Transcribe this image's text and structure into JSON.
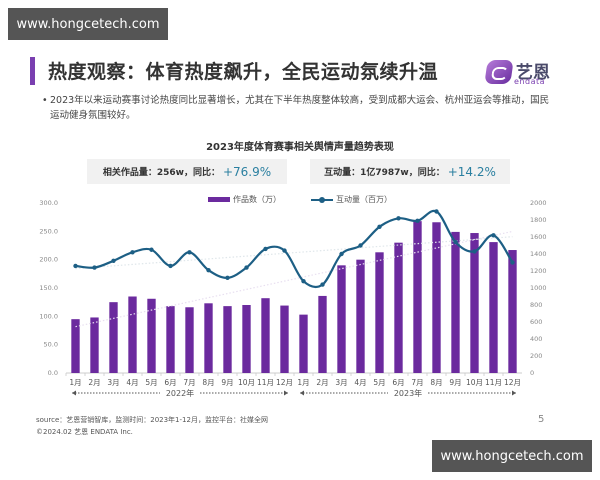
{
  "watermark": {
    "top": "www.hongcetech.com",
    "bottom": "www.hongcetech.com"
  },
  "slide": {
    "title": "热度观察：体育热度飙升，全民运动氛续升温",
    "logo": {
      "cn": "艺恩",
      "en": "endata"
    },
    "bullet": "2023年以来运动赛事讨论热度同比显著增长，尤其在下半年热度整体较高，受到成都大运会、杭州亚运会等推动，国民运动健身氛围较好。",
    "accent_color": "#7a3fb0",
    "stats": [
      {
        "label": "相关作品量：256w，同比：",
        "value": "+76.9%"
      },
      {
        "label": "互动量：1亿7987w，同比：",
        "value": "+14.2%"
      }
    ],
    "source_line": "source：艺恩营销智库，监测时间：2023年1-12月，监控平台：社媒全网",
    "copyright": "©2024.02  艺恩 ENDATA Inc.",
    "page_number": "5"
  },
  "chart_data": {
    "type": "bar",
    "title": "2023年度体育赛事相关舆情声量趋势表现",
    "categories": [
      "1月",
      "2月",
      "3月",
      "4月",
      "5月",
      "6月",
      "7月",
      "8月",
      "9月",
      "10月",
      "11月",
      "12月",
      "1月",
      "2月",
      "3月",
      "4月",
      "5月",
      "6月",
      "7月",
      "8月",
      "9月",
      "10月",
      "11月",
      "12月"
    ],
    "group_labels": [
      {
        "label": "2022年",
        "from": 0,
        "to": 11
      },
      {
        "label": "2023年",
        "from": 12,
        "to": 23
      }
    ],
    "series": [
      {
        "name": "作品数（万）",
        "type": "bar",
        "axis": "left",
        "color": "#6b2a9e",
        "values": [
          95,
          98,
          125,
          135,
          131,
          118,
          116,
          123,
          118,
          120,
          132,
          119,
          103,
          136,
          190,
          200,
          213,
          230,
          268,
          266,
          249,
          247,
          231,
          217
        ]
      },
      {
        "name": "互动量（百万）",
        "type": "line",
        "axis": "right",
        "color": "#1d5f85",
        "values": [
          1260,
          1240,
          1320,
          1420,
          1450,
          1260,
          1420,
          1210,
          1120,
          1240,
          1460,
          1440,
          1080,
          1040,
          1400,
          1500,
          1720,
          1820,
          1790,
          1900,
          1540,
          1430,
          1620,
          1300
        ]
      }
    ],
    "trendlines": "dotted linear trendlines for both series",
    "left_axis": {
      "ylim": [
        0,
        300
      ],
      "ticks": [
        "0.0",
        "50.0",
        "100.0",
        "150.0",
        "200.0",
        "250.0",
        "300.0"
      ]
    },
    "right_axis": {
      "ylim": [
        0,
        2000
      ],
      "ticks": [
        "0",
        "200",
        "400",
        "600",
        "800",
        "1000",
        "1200",
        "1400",
        "1600",
        "1800",
        "2000"
      ]
    },
    "legend_position": "top",
    "grid": false
  }
}
